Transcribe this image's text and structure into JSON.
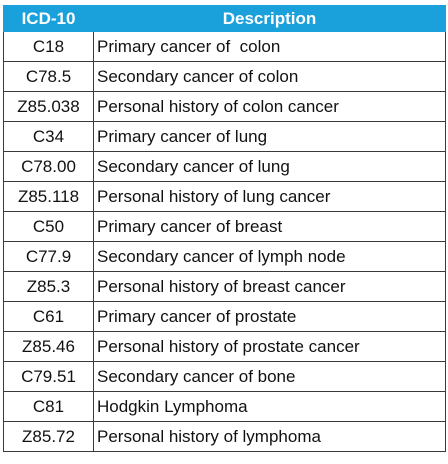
{
  "table": {
    "headers": {
      "code": "ICD-10",
      "description": "Description"
    },
    "rows": [
      {
        "code": "C18",
        "description": "Primary cancer of  colon"
      },
      {
        "code": "C78.5",
        "description": "Secondary cancer of colon"
      },
      {
        "code": "Z85.038",
        "description": "Personal history of colon cancer"
      },
      {
        "code": "C34",
        "description": "Primary cancer of lung"
      },
      {
        "code": "C78.00",
        "description": "Secondary cancer of lung"
      },
      {
        "code": "Z85.118",
        "description": "Personal history of lung cancer"
      },
      {
        "code": "C50",
        "description": "Primary cancer of breast"
      },
      {
        "code": "C77.9",
        "description": "Secondary cancer of lymph node"
      },
      {
        "code": "Z85.3",
        "description": "Personal history of breast cancer"
      },
      {
        "code": "C61",
        "description": "Primary cancer of prostate"
      },
      {
        "code": "Z85.46",
        "description": "Personal history of prostate cancer"
      },
      {
        "code": "C79.51",
        "description": "Secondary cancer of bone"
      },
      {
        "code": "C81",
        "description": "Hodgkin Lymphoma"
      },
      {
        "code": "Z85.72",
        "description": "Personal history of lymphoma"
      }
    ]
  },
  "colors": {
    "header_background": "#1aa1dc",
    "header_text": "#ffffff",
    "border": "#3a3a3a"
  }
}
